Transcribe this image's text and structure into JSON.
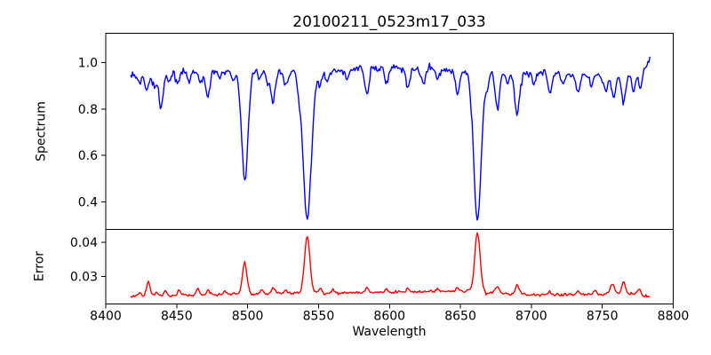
{
  "figure": {
    "background": "#ffffff",
    "title": "20100211_0523m17_033"
  },
  "chart_data": [
    {
      "type": "line",
      "name": "spectrum",
      "title": "20100211_0523m17_033",
      "ylabel": "Spectrum",
      "color": "#0000ff",
      "axis_color": "#000000",
      "xlim": [
        8400,
        8800
      ],
      "ylim": [
        0.282,
        1.126
      ],
      "ytick_values": [
        1.0,
        0.8,
        0.6,
        0.4
      ],
      "ytick_labels": [
        "1.0",
        "0.8",
        "0.6",
        "0.4"
      ],
      "grid": false,
      "legend": null,
      "x_data_range": [
        8417.5,
        8784
      ],
      "sample_step": 0.7,
      "baseline_points": [
        [
          8417,
          0.945
        ],
        [
          8430,
          0.955
        ],
        [
          8445,
          0.96
        ],
        [
          8460,
          0.962
        ],
        [
          8475,
          0.963
        ],
        [
          8490,
          0.968
        ],
        [
          8505,
          0.968
        ],
        [
          8520,
          0.965
        ],
        [
          8535,
          0.962
        ],
        [
          8550,
          0.96
        ],
        [
          8565,
          0.965
        ],
        [
          8580,
          0.972
        ],
        [
          8600,
          0.972
        ],
        [
          8620,
          0.973
        ],
        [
          8640,
          0.97
        ],
        [
          8660,
          0.965
        ],
        [
          8680,
          0.96
        ],
        [
          8700,
          0.955
        ],
        [
          8720,
          0.952
        ],
        [
          8740,
          0.945
        ],
        [
          8760,
          0.94
        ],
        [
          8772,
          0.945
        ],
        [
          8778,
          0.952
        ],
        [
          8784,
          1.03
        ]
      ],
      "feature_type": "absorption",
      "features_format": [
        "center_wavelength",
        "amplitude",
        "sigma"
      ],
      "features": [
        [
          8424,
          0.05,
          1.2
        ],
        [
          8429,
          0.085,
          1.3
        ],
        [
          8434,
          0.06,
          1.2
        ],
        [
          8439,
          0.15,
          1.6
        ],
        [
          8445,
          0.045,
          1.1
        ],
        [
          8451,
          0.05,
          1.1
        ],
        [
          8459,
          0.04,
          1.1
        ],
        [
          8467,
          0.045,
          1.2
        ],
        [
          8472,
          0.11,
          1.5
        ],
        [
          8480,
          0.04,
          1.1
        ],
        [
          8490,
          0.05,
          1.2
        ],
        [
          8498,
          0.48,
          2.3
        ],
        [
          8508,
          0.04,
          1.1
        ],
        [
          8514,
          0.055,
          1.2
        ],
        [
          8518,
          0.13,
          1.5
        ],
        [
          8527,
          0.06,
          1.2
        ],
        [
          8536,
          0.05,
          1.2
        ],
        [
          8542,
          0.64,
          2.9
        ],
        [
          8551,
          0.055,
          1.2
        ],
        [
          8556,
          0.05,
          1.2
        ],
        [
          8570,
          0.04,
          1.1
        ],
        [
          8584,
          0.1,
          1.4
        ],
        [
          8598,
          0.06,
          1.2
        ],
        [
          8613,
          0.08,
          1.3
        ],
        [
          8624,
          0.07,
          1.3
        ],
        [
          8634,
          0.05,
          1.2
        ],
        [
          8648,
          0.1,
          1.5
        ],
        [
          8662,
          0.63,
          2.7
        ],
        [
          8669,
          0.06,
          1.2
        ],
        [
          8676,
          0.15,
          1.5
        ],
        [
          8683,
          0.06,
          1.2
        ],
        [
          8690,
          0.18,
          1.7
        ],
        [
          8702,
          0.045,
          1.2
        ],
        [
          8713,
          0.08,
          1.3
        ],
        [
          8722,
          0.05,
          1.2
        ],
        [
          8733,
          0.08,
          1.3
        ],
        [
          8742,
          0.05,
          1.2
        ],
        [
          8752,
          0.06,
          1.3
        ],
        [
          8758,
          0.09,
          1.4
        ],
        [
          8765,
          0.11,
          1.5
        ],
        [
          8772,
          0.07,
          1.3
        ],
        [
          8777,
          0.06,
          1.2
        ]
      ],
      "noise_amp": 0.018,
      "noise_seed": 523
    },
    {
      "type": "line",
      "name": "error",
      "xlabel": "Wavelength",
      "ylabel": "Error",
      "color": "#ff0000",
      "axis_color": "#000000",
      "xlim": [
        8400,
        8800
      ],
      "ylim": [
        0.022,
        0.0437
      ],
      "ytick_values": [
        0.04,
        0.03
      ],
      "ytick_labels": [
        "0.04",
        "0.03"
      ],
      "xtick_values": [
        8400,
        8450,
        8500,
        8550,
        8600,
        8650,
        8700,
        8750,
        8800
      ],
      "xtick_labels": [
        "8400",
        "8450",
        "8500",
        "8550",
        "8600",
        "8650",
        "8700",
        "8750",
        "8800"
      ],
      "grid": false,
      "legend": null,
      "x_data_range": [
        8417.5,
        8784
      ],
      "sample_step": 0.7,
      "baseline_points": [
        [
          8417,
          0.0243
        ],
        [
          8450,
          0.0246
        ],
        [
          8480,
          0.0247
        ],
        [
          8510,
          0.0249
        ],
        [
          8540,
          0.0251
        ],
        [
          8570,
          0.0252
        ],
        [
          8600,
          0.0255
        ],
        [
          8630,
          0.0256
        ],
        [
          8655,
          0.0258
        ],
        [
          8680,
          0.025
        ],
        [
          8700,
          0.0246
        ],
        [
          8730,
          0.0247
        ],
        [
          8760,
          0.025
        ],
        [
          8775,
          0.0248
        ],
        [
          8784,
          0.0238
        ]
      ],
      "feature_type": "emission",
      "features_format": [
        "center_wavelength",
        "amplitude",
        "sigma"
      ],
      "features": [
        [
          8424,
          0.0012,
          1.0
        ],
        [
          8430,
          0.004,
          1.2
        ],
        [
          8436,
          0.001,
          1.0
        ],
        [
          8442,
          0.0012,
          1.0
        ],
        [
          8452,
          0.0015,
          1.1
        ],
        [
          8465,
          0.0018,
          1.2
        ],
        [
          8472,
          0.0012,
          1.0
        ],
        [
          8484,
          0.001,
          1.0
        ],
        [
          8498,
          0.0092,
          1.6
        ],
        [
          8510,
          0.0013,
          1.0
        ],
        [
          8518,
          0.0018,
          1.2
        ],
        [
          8527,
          0.0012,
          1.0
        ],
        [
          8542,
          0.0164,
          1.9
        ],
        [
          8551,
          0.0012,
          1.0
        ],
        [
          8560,
          0.001,
          1.0
        ],
        [
          8584,
          0.0014,
          1.1
        ],
        [
          8598,
          0.001,
          1.0
        ],
        [
          8613,
          0.0012,
          1.0
        ],
        [
          8634,
          0.001,
          1.0
        ],
        [
          8648,
          0.0013,
          1.1
        ],
        [
          8662,
          0.0171,
          1.9
        ],
        [
          8676,
          0.002,
          1.2
        ],
        [
          8690,
          0.0028,
          1.3
        ],
        [
          8713,
          0.001,
          1.0
        ],
        [
          8733,
          0.0012,
          1.0
        ],
        [
          8745,
          0.001,
          1.0
        ],
        [
          8757,
          0.003,
          1.3
        ],
        [
          8765,
          0.0035,
          1.3
        ],
        [
          8776,
          0.0015,
          1.1
        ]
      ],
      "noise_amp": 0.00045,
      "noise_seed": 17
    }
  ]
}
